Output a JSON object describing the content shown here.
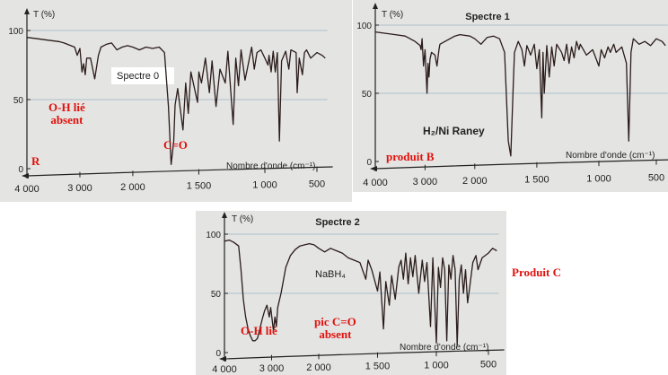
{
  "colors": {
    "paper": "#e4e4e3",
    "trace": "#2a1c1a",
    "annotation": "#e0110c",
    "grid": "#9bb6c3"
  },
  "annotations": {
    "oh_lie_absent": "O-H lié\nabsent",
    "co_peak": "C=O",
    "r_label": "R",
    "produit_b": "produit B",
    "produit_c": "Produit C",
    "oh_lie": "O-H lié",
    "pic_co_absent": "pic C=O\nabsent"
  },
  "chart_data": [
    {
      "type": "line",
      "title": "",
      "panel_label": "Spectre 0",
      "xlabel": "Nombre d'onde (cm⁻¹)",
      "ylabel": "T (%)",
      "xlim": [
        4000,
        400
      ],
      "ylim": [
        0,
        100
      ],
      "x_ticks": [
        "4 000",
        "3 000",
        "2 000",
        "1 500",
        "1 000",
        "500"
      ],
      "y_ticks": [
        "100",
        "50",
        "0"
      ],
      "series": [
        {
          "points": [
            [
              4000,
              95
            ],
            [
              3800,
              94
            ],
            [
              3600,
              93
            ],
            [
              3400,
              92
            ],
            [
              3300,
              91
            ],
            [
              3100,
              88
            ],
            [
              3050,
              82
            ],
            [
              3000,
              87
            ],
            [
              2960,
              70
            ],
            [
              2930,
              76
            ],
            [
              2900,
              68
            ],
            [
              2870,
              80
            ],
            [
              2800,
              80
            ],
            [
              2720,
              65
            ],
            [
              2650,
              82
            ],
            [
              2600,
              88
            ],
            [
              2500,
              90
            ],
            [
              2400,
              91
            ],
            [
              2300,
              86
            ],
            [
              2200,
              88
            ],
            [
              2100,
              89
            ],
            [
              2000,
              88
            ],
            [
              1950,
              86
            ],
            [
              1900,
              88
            ],
            [
              1850,
              87
            ],
            [
              1800,
              88
            ],
            [
              1760,
              84
            ],
            [
              1730,
              45
            ],
            [
              1710,
              3
            ],
            [
              1690,
              20
            ],
            [
              1680,
              46
            ],
            [
              1660,
              58
            ],
            [
              1620,
              28
            ],
            [
              1600,
              62
            ],
            [
              1580,
              40
            ],
            [
              1560,
              70
            ],
            [
              1510,
              48
            ],
            [
              1500,
              70
            ],
            [
              1480,
              62
            ],
            [
              1450,
              80
            ],
            [
              1420,
              55
            ],
            [
              1400,
              78
            ],
            [
              1370,
              45
            ],
            [
              1340,
              72
            ],
            [
              1300,
              62
            ],
            [
              1280,
              85
            ],
            [
              1240,
              32
            ],
            [
              1220,
              80
            ],
            [
              1200,
              60
            ],
            [
              1180,
              86
            ],
            [
              1150,
              64
            ],
            [
              1100,
              88
            ],
            [
              1080,
              72
            ],
            [
              1060,
              84
            ],
            [
              1030,
              86
            ],
            [
              1000,
              80
            ],
            [
              970,
              75
            ],
            [
              960,
              82
            ],
            [
              940,
              70
            ],
            [
              920,
              85
            ],
            [
              900,
              70
            ],
            [
              880,
              84
            ],
            [
              860,
              20
            ],
            [
              840,
              78
            ],
            [
              800,
              85
            ],
            [
              770,
              72
            ],
            [
              750,
              86
            ],
            [
              700,
              84
            ],
            [
              690,
              55
            ],
            [
              670,
              80
            ],
            [
              640,
              68
            ],
            [
              620,
              84
            ],
            [
              600,
              86
            ],
            [
              560,
              80
            ],
            [
              500,
              84
            ],
            [
              450,
              82
            ],
            [
              420,
              80
            ]
          ]
        }
      ]
    },
    {
      "type": "line",
      "title": "Spectre 1",
      "panel_label": "H₂/Ni Raney",
      "xlabel": "Nombre d'onde (cm⁻¹)",
      "ylabel": "T (%)",
      "xlim": [
        4000,
        400
      ],
      "ylim": [
        0,
        100
      ],
      "x_ticks": [
        "4 000",
        "3 000",
        "2 000",
        "1 500",
        "1 000",
        "500"
      ],
      "y_ticks": [
        "100",
        "50",
        "0"
      ],
      "series": [
        {
          "points": [
            [
              4000,
              95
            ],
            [
              3800,
              94
            ],
            [
              3600,
              93
            ],
            [
              3400,
              92
            ],
            [
              3300,
              90
            ],
            [
              3200,
              88
            ],
            [
              3100,
              85
            ],
            [
              3080,
              82
            ],
            [
              3060,
              90
            ],
            [
              3030,
              70
            ],
            [
              3000,
              82
            ],
            [
              2960,
              50
            ],
            [
              2940,
              72
            ],
            [
              2920,
              62
            ],
            [
              2900,
              75
            ],
            [
              2870,
              80
            ],
            [
              2800,
              78
            ],
            [
              2760,
              70
            ],
            [
              2720,
              82
            ],
            [
              2700,
              86
            ],
            [
              2600,
              88
            ],
            [
              2500,
              90
            ],
            [
              2400,
              92
            ],
            [
              2300,
              93
            ],
            [
              2100,
              92
            ],
            [
              2000,
              90
            ],
            [
              1950,
              86
            ],
            [
              1900,
              91
            ],
            [
              1850,
              92
            ],
            [
              1800,
              90
            ],
            [
              1760,
              80
            ],
            [
              1730,
              15
            ],
            [
              1710,
              4
            ],
            [
              1690,
              55
            ],
            [
              1680,
              80
            ],
            [
              1650,
              88
            ],
            [
              1620,
              82
            ],
            [
              1600,
              70
            ],
            [
              1580,
              85
            ],
            [
              1550,
              78
            ],
            [
              1520,
              86
            ],
            [
              1500,
              68
            ],
            [
              1480,
              82
            ],
            [
              1460,
              32
            ],
            [
              1450,
              80
            ],
            [
              1440,
              50
            ],
            [
              1420,
              85
            ],
            [
              1400,
              62
            ],
            [
              1380,
              84
            ],
            [
              1360,
              70
            ],
            [
              1340,
              86
            ],
            [
              1300,
              80
            ],
            [
              1280,
              74
            ],
            [
              1260,
              86
            ],
            [
              1240,
              72
            ],
            [
              1220,
              84
            ],
            [
              1200,
              76
            ],
            [
              1180,
              88
            ],
            [
              1160,
              82
            ],
            [
              1150,
              86
            ],
            [
              1100,
              78
            ],
            [
              1050,
              82
            ],
            [
              1000,
              70
            ],
            [
              980,
              82
            ],
            [
              950,
              76
            ],
            [
              920,
              84
            ],
            [
              900,
              80
            ],
            [
              870,
              86
            ],
            [
              850,
              80
            ],
            [
              800,
              84
            ],
            [
              760,
              72
            ],
            [
              740,
              15
            ],
            [
              720,
              80
            ],
            [
              700,
              90
            ],
            [
              650,
              86
            ],
            [
              600,
              88
            ],
            [
              550,
              85
            ],
            [
              500,
              90
            ],
            [
              450,
              88
            ],
            [
              420,
              85
            ]
          ]
        }
      ]
    },
    {
      "type": "line",
      "title": "Spectre 2",
      "panel_label": "NaBH₄",
      "xlabel": "Nombre d'onde (cm⁻¹)",
      "ylabel": "T (%)",
      "xlim": [
        4000,
        400
      ],
      "ylim": [
        0,
        100
      ],
      "x_ticks": [
        "4 000",
        "3 000",
        "2 000",
        "1 500",
        "1 000",
        "500"
      ],
      "y_ticks": [
        "100",
        "50",
        "0"
      ],
      "series": [
        {
          "points": [
            [
              4000,
              94
            ],
            [
              3900,
              95
            ],
            [
              3800,
              93
            ],
            [
              3700,
              90
            ],
            [
              3650,
              70
            ],
            [
              3600,
              45
            ],
            [
              3550,
              30
            ],
            [
              3500,
              20
            ],
            [
              3450,
              14
            ],
            [
              3400,
              10
            ],
            [
              3350,
              10
            ],
            [
              3300,
              12
            ],
            [
              3250,
              20
            ],
            [
              3200,
              28
            ],
            [
              3150,
              35
            ],
            [
              3100,
              40
            ],
            [
              3050,
              30
            ],
            [
              3020,
              38
            ],
            [
              2960,
              18
            ],
            [
              2930,
              30
            ],
            [
              2900,
              22
            ],
            [
              2870,
              38
            ],
            [
              2800,
              50
            ],
            [
              2700,
              72
            ],
            [
              2600,
              82
            ],
            [
              2500,
              87
            ],
            [
              2400,
              90
            ],
            [
              2300,
              91
            ],
            [
              2200,
              92
            ],
            [
              2100,
              91
            ],
            [
              2000,
              88
            ],
            [
              1950,
              85
            ],
            [
              1900,
              88
            ],
            [
              1850,
              86
            ],
            [
              1800,
              84
            ],
            [
              1750,
              80
            ],
            [
              1700,
              78
            ],
            [
              1650,
              76
            ],
            [
              1600,
              62
            ],
            [
              1580,
              78
            ],
            [
              1550,
              70
            ],
            [
              1500,
              52
            ],
            [
              1480,
              68
            ],
            [
              1450,
              20
            ],
            [
              1430,
              60
            ],
            [
              1400,
              40
            ],
            [
              1380,
              65
            ],
            [
              1350,
              45
            ],
            [
              1320,
              72
            ],
            [
              1300,
              78
            ],
            [
              1280,
              62
            ],
            [
              1260,
              84
            ],
            [
              1240,
              58
            ],
            [
              1220,
              80
            ],
            [
              1200,
              64
            ],
            [
              1180,
              82
            ],
            [
              1150,
              50
            ],
            [
              1120,
              78
            ],
            [
              1100,
              60
            ],
            [
              1080,
              76
            ],
            [
              1050,
              22
            ],
            [
              1030,
              80
            ],
            [
              1000,
              8
            ],
            [
              980,
              72
            ],
            [
              960,
              55
            ],
            [
              940,
              80
            ],
            [
              920,
              70
            ],
            [
              900,
              10
            ],
            [
              880,
              74
            ],
            [
              860,
              62
            ],
            [
              840,
              82
            ],
            [
              820,
              70
            ],
            [
              800,
              6
            ],
            [
              780,
              62
            ],
            [
              760,
              74
            ],
            [
              740,
              50
            ],
            [
              720,
              70
            ],
            [
              700,
              42
            ],
            [
              680,
              55
            ],
            [
              650,
              76
            ],
            [
              620,
              82
            ],
            [
              600,
              70
            ],
            [
              560,
              80
            ],
            [
              500,
              84
            ],
            [
              460,
              88
            ],
            [
              420,
              86
            ]
          ]
        }
      ]
    }
  ]
}
